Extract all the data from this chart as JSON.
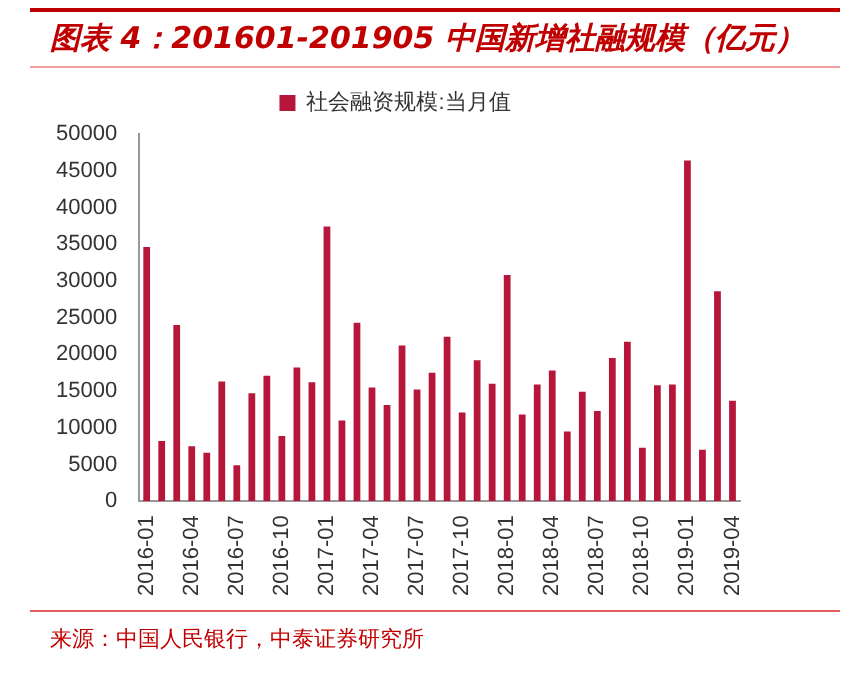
{
  "chart_data": {
    "type": "bar",
    "title": "图表 4：201601-201905 中国新增社融规模（亿元）",
    "categories": [
      "2016-01",
      null,
      null,
      "2016-04",
      null,
      null,
      "2016-07",
      null,
      null,
      "2016-10",
      null,
      null,
      "2017-01",
      null,
      null,
      "2017-04",
      null,
      null,
      "2017-07",
      null,
      null,
      "2017-10",
      null,
      null,
      "2018-01",
      null,
      null,
      "2018-04",
      null,
      null,
      "2018-07",
      null,
      null,
      "2018-10",
      null,
      null,
      "2019-01",
      null,
      null,
      "2019-04"
    ],
    "series": [
      {
        "name": "社会融资规模:当月值",
        "color": "#b5163a",
        "values": [
          34600,
          8200,
          24000,
          7500,
          6600,
          16300,
          4900,
          14700,
          17100,
          8900,
          18200,
          16200,
          37400,
          11000,
          24300,
          15500,
          13100,
          21200,
          15200,
          17500,
          22400,
          12100,
          19200,
          16000,
          30800,
          11800,
          15900,
          17800,
          9500,
          14900,
          12300,
          19500,
          21700,
          7300,
          15800,
          15900,
          46400,
          7000,
          28600,
          13700
        ]
      }
    ],
    "ylim": [
      0,
      50000
    ],
    "yticks": [
      0,
      5000,
      10000,
      15000,
      20000,
      25000,
      30000,
      35000,
      40000,
      45000,
      50000
    ],
    "grid": false,
    "legend": "top",
    "annotations": [
      "来源：中国人民银行，中泰证券研究所"
    ]
  }
}
